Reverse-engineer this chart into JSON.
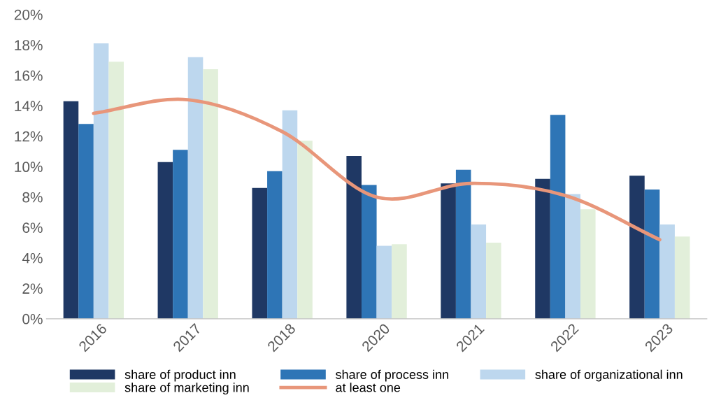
{
  "chart_data": {
    "type": "bar",
    "categories": [
      "2016",
      "2017",
      "2018",
      "2020",
      "2021",
      "2022",
      "2023"
    ],
    "series": [
      {
        "name": "share of product inn",
        "color": "#1f3864",
        "values": [
          14.3,
          10.3,
          8.6,
          10.7,
          8.9,
          9.2,
          9.4
        ]
      },
      {
        "name": "share of process inn",
        "color": "#2e75b6",
        "values": [
          12.8,
          11.1,
          9.7,
          8.8,
          9.8,
          13.4,
          8.5
        ]
      },
      {
        "name": "share of organizational inn",
        "color": "#bdd7ee",
        "values": [
          18.1,
          17.2,
          13.7,
          4.8,
          6.2,
          8.2,
          6.2
        ]
      },
      {
        "name": "share of marketing inn",
        "color": "#e2efda",
        "values": [
          16.9,
          16.4,
          11.7,
          4.9,
          5.0,
          7.2,
          5.4
        ]
      },
      {
        "name": "at least one",
        "color": "#e8967a",
        "type": "line",
        "values": [
          13.5,
          14.4,
          12.3,
          8.0,
          8.9,
          8.1,
          5.2
        ]
      }
    ],
    "ylim": [
      0,
      20
    ],
    "yticks": [
      {
        "value": 0,
        "label": "0%"
      },
      {
        "value": 2,
        "label": "2%"
      },
      {
        "value": 4,
        "label": "4%"
      },
      {
        "value": 6,
        "label": "6%"
      },
      {
        "value": 8,
        "label": "8%"
      },
      {
        "value": 10,
        "label": "10%"
      },
      {
        "value": 12,
        "label": "12%"
      },
      {
        "value": 14,
        "label": "14%"
      },
      {
        "value": 16,
        "label": "16%"
      },
      {
        "value": 18,
        "label": "18%"
      },
      {
        "value": 20,
        "label": "20%"
      }
    ],
    "grid": false,
    "legend": "bottom"
  }
}
